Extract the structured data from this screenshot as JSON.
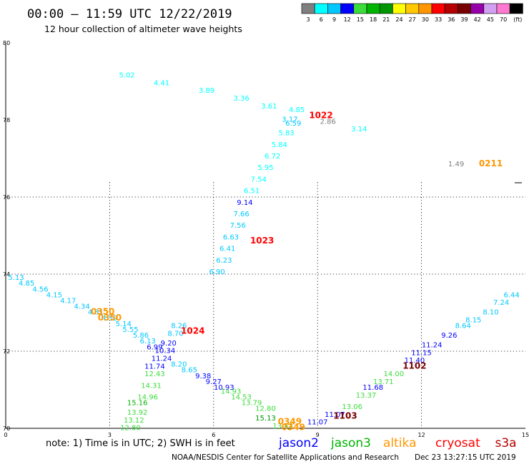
{
  "header": {
    "title": "00:00 – 11:59 UTC 12/22/2019",
    "subtitle": "12 hour collection of altimeter wave heights"
  },
  "legend": {
    "colors": [
      "#7f7f7f",
      "#00ffff",
      "#00c8ff",
      "#0000ff",
      "#3cdc3c",
      "#00b400",
      "#009600",
      "#ffff00",
      "#ffc800",
      "#ff9600",
      "#ff0000",
      "#b40000",
      "#780000",
      "#9600aa",
      "#d2a0f0",
      "#ff78d2",
      "#000000"
    ],
    "labels": [
      "3",
      "6",
      "9",
      "12",
      "15",
      "18",
      "21",
      "24",
      "27",
      "30",
      "33",
      "36",
      "39",
      "42",
      "45",
      "70",
      "(ft)"
    ]
  },
  "axes": {
    "x_ticks": [
      "0",
      "3",
      "6",
      "9",
      "12",
      "15"
    ],
    "y_ticks": [
      "80",
      "78",
      "76",
      "74",
      "72",
      "70"
    ]
  },
  "tracks": [
    {
      "color": "#00ffff",
      "points": [
        {
          "lon": 3.5,
          "lat": 79.1,
          "v": "5.02"
        },
        {
          "lon": 4.5,
          "lat": 78.9,
          "v": "4.41"
        },
        {
          "lon": 5.8,
          "lat": 78.7,
          "v": "3.89"
        },
        {
          "lon": 6.8,
          "lat": 78.5,
          "v": "3.36"
        },
        {
          "lon": 7.6,
          "lat": 78.3,
          "v": "3.61"
        },
        {
          "lon": 8.4,
          "lat": 78.2,
          "v": "4.85"
        },
        {
          "lon": 10.2,
          "lat": 77.7,
          "v": "3.14"
        },
        {
          "lon": 8.1,
          "lat": 77.6,
          "v": "5.83"
        },
        {
          "lon": 7.9,
          "lat": 77.3,
          "v": "5.84"
        },
        {
          "lon": 7.7,
          "lat": 77.0,
          "v": "6.72"
        },
        {
          "lon": 7.5,
          "lat": 76.7,
          "v": "5.95"
        },
        {
          "lon": 7.3,
          "lat": 76.4,
          "v": "7.54"
        },
        {
          "lon": 7.1,
          "lat": 76.1,
          "v": "6.51"
        }
      ]
    },
    {
      "color": "#00c8ff",
      "points": [
        {
          "lon": 8.2,
          "lat": 77.95,
          "v": "3.17"
        },
        {
          "lon": 8.3,
          "lat": 77.85,
          "v": "6.59"
        }
      ]
    },
    {
      "color": "#0000ff",
      "points": [
        {
          "lon": 6.9,
          "lat": 75.8,
          "v": "9.14"
        }
      ]
    },
    {
      "color": "#00c8ff",
      "points": [
        {
          "lon": 6.8,
          "lat": 75.5,
          "v": "7.66"
        },
        {
          "lon": 6.7,
          "lat": 75.2,
          "v": "7.56"
        },
        {
          "lon": 6.5,
          "lat": 74.9,
          "v": "6.63"
        },
        {
          "lon": 6.4,
          "lat": 74.6,
          "v": "6.41"
        },
        {
          "lon": 6.3,
          "lat": 74.3,
          "v": "6.23"
        },
        {
          "lon": 6.1,
          "lat": 74.0,
          "v": "6.90"
        }
      ]
    },
    {
      "color": "#7f7f7f",
      "points": [
        {
          "lon": 9.3,
          "lat": 77.9,
          "v": "2.86"
        },
        {
          "lon": 13.0,
          "lat": 76.8,
          "v": "1.49"
        }
      ]
    },
    {
      "color": "#00c8ff",
      "points": [
        {
          "lon": 0.3,
          "lat": 73.85,
          "v": "5.13"
        },
        {
          "lon": 0.6,
          "lat": 73.7,
          "v": "4.85"
        },
        {
          "lon": 1.0,
          "lat": 73.55,
          "v": "4.56"
        },
        {
          "lon": 1.4,
          "lat": 73.4,
          "v": "4.15"
        },
        {
          "lon": 1.8,
          "lat": 73.25,
          "v": "4.17"
        },
        {
          "lon": 2.2,
          "lat": 73.1,
          "v": "4.34"
        },
        {
          "lon": 2.6,
          "lat": 72.95,
          "v": "4.31"
        },
        {
          "lon": 3.0,
          "lat": 72.8,
          "v": "4.59"
        },
        {
          "lon": 3.4,
          "lat": 72.65,
          "v": "5.14"
        },
        {
          "lon": 3.6,
          "lat": 72.5,
          "v": "5.55"
        },
        {
          "lon": 3.9,
          "lat": 72.35,
          "v": "5.86"
        },
        {
          "lon": 4.1,
          "lat": 72.2,
          "v": "6.13"
        },
        {
          "lon": 5.0,
          "lat": 72.6,
          "v": "8.26"
        },
        {
          "lon": 4.9,
          "lat": 72.4,
          "v": "8.70"
        },
        {
          "lon": 5.0,
          "lat": 71.6,
          "v": "8.20"
        },
        {
          "lon": 5.3,
          "lat": 71.45,
          "v": "8.65"
        }
      ]
    },
    {
      "color": "#0000ff",
      "points": [
        {
          "lon": 4.7,
          "lat": 72.15,
          "v": "9.20"
        },
        {
          "lon": 4.6,
          "lat": 71.95,
          "v": "10.34"
        },
        {
          "lon": 4.5,
          "lat": 71.75,
          "v": "11.24"
        },
        {
          "lon": 4.3,
          "lat": 71.55,
          "v": "11.74"
        },
        {
          "lon": 4.3,
          "lat": 72.05,
          "v": "6.99"
        },
        {
          "lon": 5.7,
          "lat": 71.3,
          "v": "9.38"
        },
        {
          "lon": 6.0,
          "lat": 71.15,
          "v": "9.27"
        },
        {
          "lon": 6.3,
          "lat": 71.0,
          "v": "10.93"
        }
      ]
    },
    {
      "color": "#3cdc3c",
      "points": [
        {
          "lon": 4.3,
          "lat": 71.35,
          "v": "12.43"
        },
        {
          "lon": 4.2,
          "lat": 71.05,
          "v": "14.31"
        },
        {
          "lon": 4.1,
          "lat": 70.75,
          "v": "14.96"
        },
        {
          "lon": 3.8,
          "lat": 70.35,
          "v": "13.92"
        },
        {
          "lon": 3.7,
          "lat": 70.15,
          "v": "13.12"
        },
        {
          "lon": 3.6,
          "lat": 69.95,
          "v": "12.80"
        },
        {
          "lon": 6.5,
          "lat": 70.9,
          "v": "14.93"
        },
        {
          "lon": 6.8,
          "lat": 70.75,
          "v": "14.53"
        },
        {
          "lon": 7.1,
          "lat": 70.6,
          "v": "13.79"
        },
        {
          "lon": 7.5,
          "lat": 70.45,
          "v": "12.80"
        },
        {
          "lon": 8.0,
          "lat": 70.0,
          "v": "13.43"
        },
        {
          "lon": 10.0,
          "lat": 70.5,
          "v": "13.06"
        },
        {
          "lon": 10.4,
          "lat": 70.8,
          "v": "13.37"
        },
        {
          "lon": 10.9,
          "lat": 71.15,
          "v": "13.71"
        },
        {
          "lon": 11.2,
          "lat": 71.35,
          "v": "14.00"
        }
      ]
    },
    {
      "color": "#00b400",
      "points": [
        {
          "lon": 3.8,
          "lat": 70.6,
          "v": "15.16"
        }
      ]
    },
    {
      "color": "#009600",
      "points": [
        {
          "lon": 7.5,
          "lat": 70.2,
          "v": "15.13"
        }
      ]
    },
    {
      "color": "#0000ff",
      "points": [
        {
          "lon": 9.0,
          "lat": 70.1,
          "v": "11.07"
        },
        {
          "lon": 9.5,
          "lat": 70.3,
          "v": "11.07"
        },
        {
          "lon": 10.6,
          "lat": 71.0,
          "v": "11.68"
        },
        {
          "lon": 11.8,
          "lat": 71.7,
          "v": "11.40"
        },
        {
          "lon": 12.0,
          "lat": 71.9,
          "v": "11.15"
        },
        {
          "lon": 12.3,
          "lat": 72.1,
          "v": "11.24"
        },
        {
          "lon": 12.8,
          "lat": 72.35,
          "v": "9.26"
        }
      ]
    },
    {
      "color": "#00c8ff",
      "points": [
        {
          "lon": 13.2,
          "lat": 72.6,
          "v": "8.64"
        },
        {
          "lon": 13.5,
          "lat": 72.75,
          "v": "8.15"
        },
        {
          "lon": 14.0,
          "lat": 72.95,
          "v": "8.10"
        },
        {
          "lon": 14.3,
          "lat": 73.2,
          "v": "7.24"
        },
        {
          "lon": 14.6,
          "lat": 73.4,
          "v": "6.44"
        }
      ]
    }
  ],
  "times": [
    {
      "lon": 9.1,
      "lat": 78.05,
      "t": "1022",
      "color": "#ff0000"
    },
    {
      "lon": 14.0,
      "lat": 76.8,
      "t": "0211",
      "color": "#ff9600"
    },
    {
      "lon": 7.4,
      "lat": 74.8,
      "t": "1023",
      "color": "#ff0000"
    },
    {
      "lon": 2.8,
      "lat": 72.95,
      "t": "0350",
      "color": "#ff9600"
    },
    {
      "lon": 3.0,
      "lat": 72.8,
      "t": "0350",
      "color": "#ff9600"
    },
    {
      "lon": 5.4,
      "lat": 72.45,
      "t": "1024",
      "color": "#ff0000"
    },
    {
      "lon": 11.8,
      "lat": 71.55,
      "t": "1102",
      "color": "#780000"
    },
    {
      "lon": 9.8,
      "lat": 70.25,
      "t": "1103",
      "color": "#780000"
    },
    {
      "lon": 8.2,
      "lat": 70.1,
      "t": "0349",
      "color": "#ff9600"
    },
    {
      "lon": 8.3,
      "lat": 69.95,
      "t": "0349",
      "color": "#ff9600"
    }
  ],
  "footer": {
    "note": "note: 1) Time is in UTC; 2) SWH is in feet",
    "satellites": [
      {
        "name": "jason2",
        "color": "#0000ff"
      },
      {
        "name": "jason3",
        "color": "#00b400"
      },
      {
        "name": "altika",
        "color": "#ff9600"
      },
      {
        "name": "cryosat",
        "color": "#ff0000"
      },
      {
        "name": "s3a",
        "color": "#b40000"
      }
    ],
    "credit": "NOAA/NESDIS Center for Satellite Applications and Research",
    "timestamp": "Dec 23 13:27:15 UTC 2019"
  }
}
